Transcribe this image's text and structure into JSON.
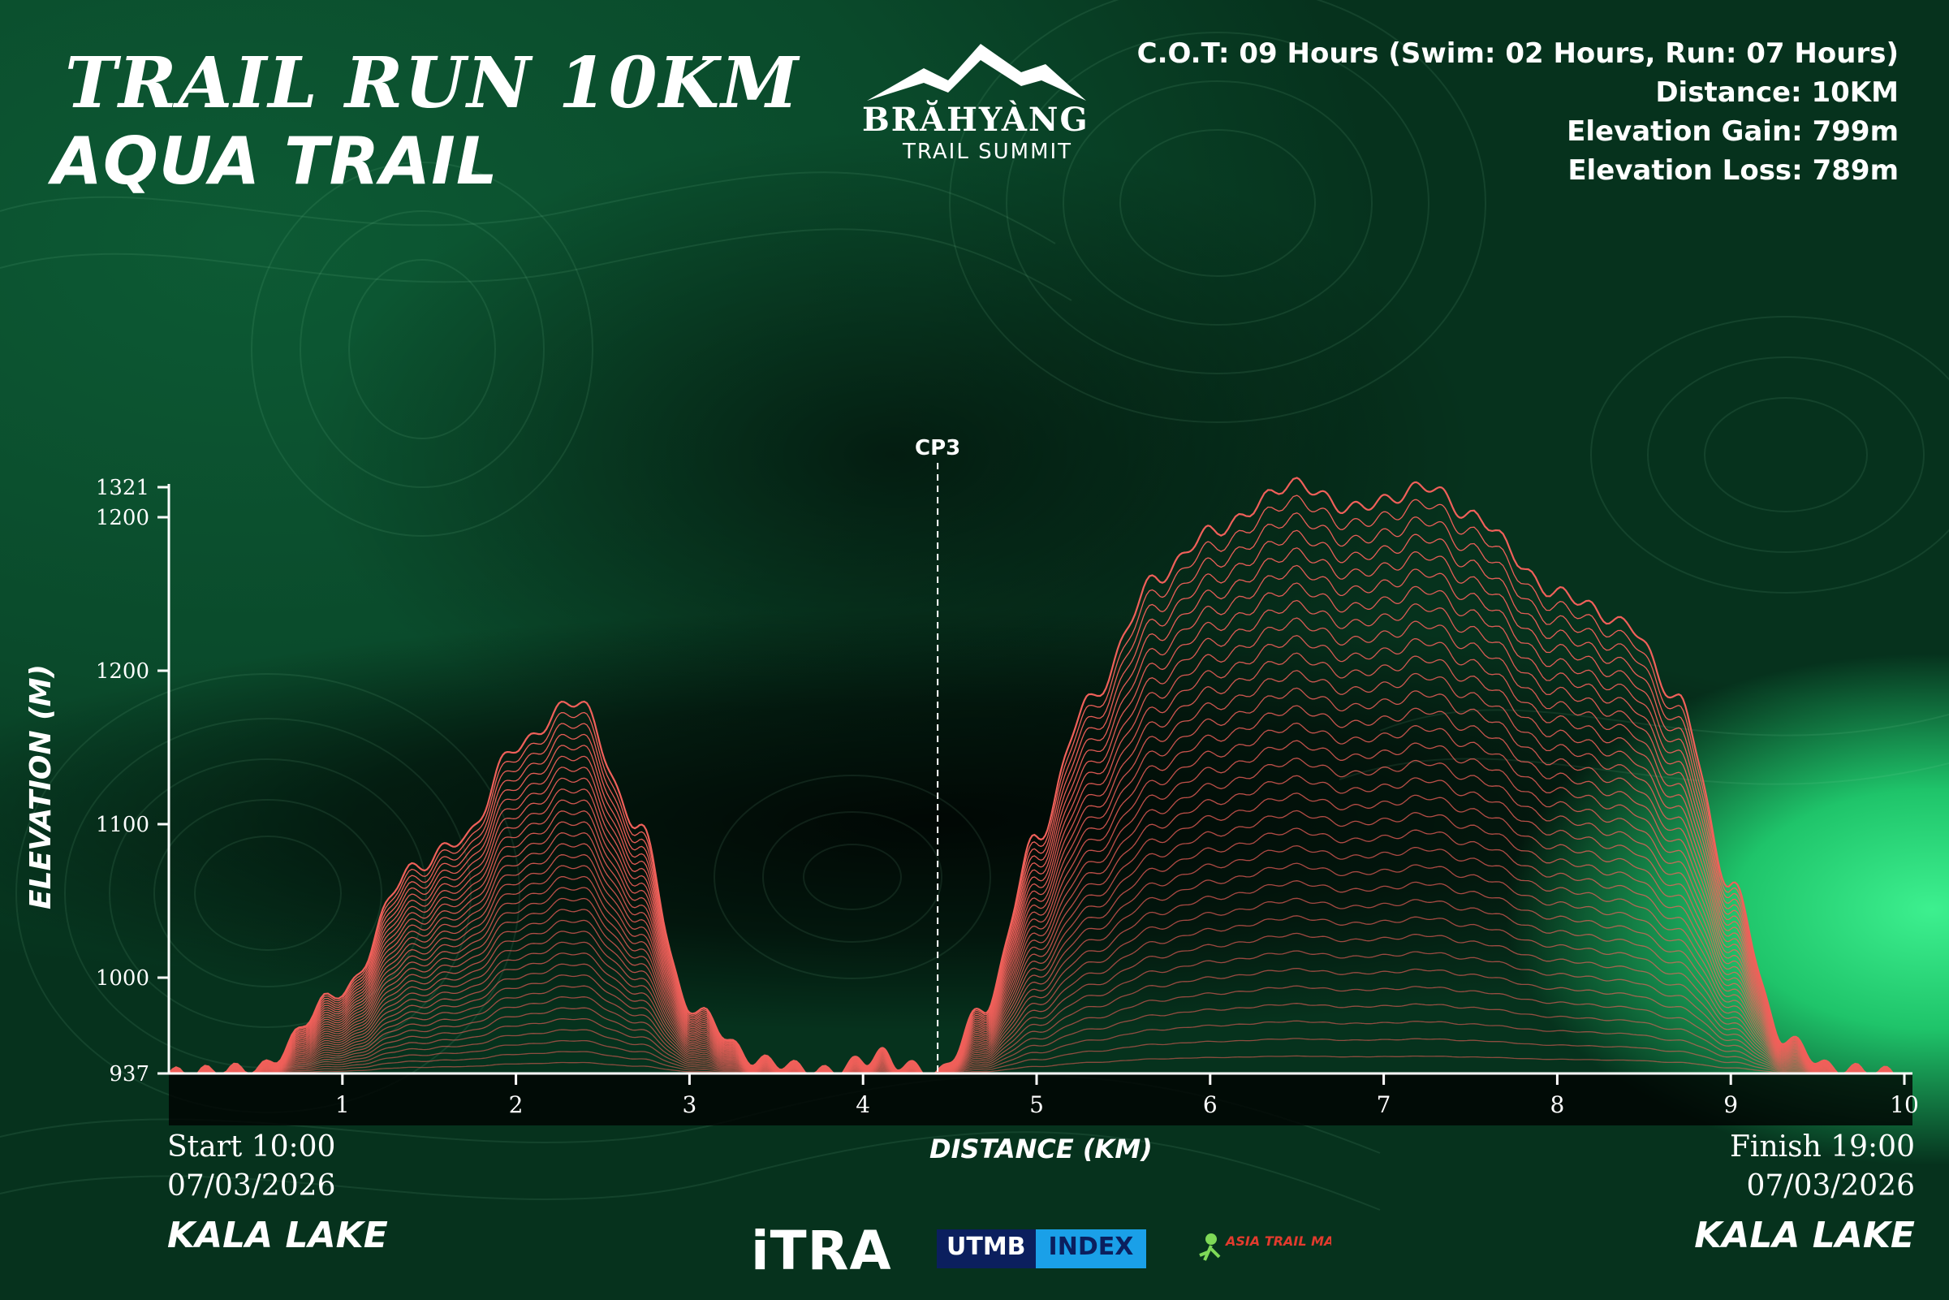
{
  "header": {
    "title": "TRAIL RUN 10KM",
    "subtitle": "AQUA TRAIL"
  },
  "logo": {
    "name": "BRĂHYÀNG",
    "tagline": "TRAIL SUMMIT"
  },
  "race_info": {
    "cot": "C.O.T: 09 Hours (Swim: 02 Hours, Run: 07 Hours)",
    "distance": "Distance: 10KM",
    "gain": "Elevation Gain: 799m",
    "loss": "Elevation Loss: 789m"
  },
  "start": {
    "time": "Start 10:00",
    "date": "07/03/2026",
    "place": "KALA LAKE"
  },
  "finish": {
    "time": "Finish 19:00",
    "date": "07/03/2026",
    "place": "KALA LAKE"
  },
  "sponsors": {
    "itra": "iTRA",
    "utmb": "UTMB",
    "utmb_index": "INDEX",
    "atm": "ASIA TRAIL MASTER"
  },
  "colors": {
    "profile_line": "#f0605a",
    "accent_green": "#7ed957",
    "axis": "#ffffff"
  },
  "chart_data": {
    "type": "area",
    "xlabel": "DISTANCE (KM)",
    "ylabel": "ELEVATION (M)",
    "x_ticks": [
      1,
      2,
      3,
      4,
      5,
      6,
      7,
      8,
      9,
      10
    ],
    "y_tick_labels": [
      "937",
      "1000",
      "1100",
      "1200",
      "1200",
      "1321"
    ],
    "xlim": [
      0,
      10
    ],
    "checkpoint": {
      "label": "CP3",
      "x": 4.43
    },
    "series": [
      {
        "x": [
          0,
          0.5,
          1.0,
          1.4,
          1.7,
          2.0,
          2.35,
          2.7,
          3.0,
          3.4,
          3.8,
          4.0,
          4.1,
          4.2,
          4.43,
          4.7,
          5.0,
          5.3,
          5.7,
          6.0,
          6.5,
          6.8,
          7.0,
          7.25,
          7.5,
          8.0,
          8.4,
          8.7,
          9.0,
          9.3,
          9.6,
          10.0
        ],
        "y": [
          937,
          940,
          990,
          1070,
          1090,
          1150,
          1180,
          1100,
          980,
          945,
          938,
          945,
          950,
          943,
          937,
          980,
          1090,
          1180,
          1260,
          1290,
          1321,
          1305,
          1310,
          1320,
          1300,
          1250,
          1230,
          1180,
          1060,
          960,
          940,
          937
        ]
      }
    ]
  }
}
